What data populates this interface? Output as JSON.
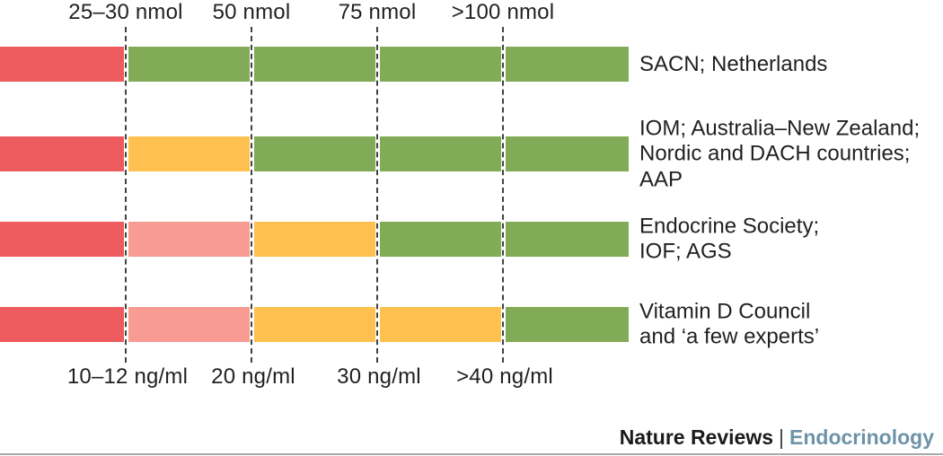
{
  "chart_data": {
    "type": "bar",
    "subtype": "horizontal-stacked-threshold-ranges",
    "description_of_axes": "Two linked concentration axes for serum vitamin D: top axis in nmol, bottom axis in ng/ml, marking the same four threshold lines",
    "top_axis": {
      "unit": "nmol",
      "tick_labels": [
        "25–30 nmol",
        "50 nmol",
        "75 nmol",
        ">100 nmol"
      ]
    },
    "bottom_axis": {
      "unit": "ng/ml",
      "tick_labels": [
        "10–12 ng/ml",
        "20 ng/ml",
        "30 ng/ml",
        ">40 ng/ml"
      ]
    },
    "segment_count_per_row": 5,
    "colors": {
      "red": "#ee5b5e",
      "pink": "#f79b93",
      "orange": "#fec14f",
      "green": "#81ab56"
    },
    "rows": [
      {
        "label_lines": [
          "SACN; Netherlands"
        ],
        "segments": [
          "red",
          "green",
          "green",
          "green",
          "green"
        ]
      },
      {
        "label_lines": [
          "IOM; Australia–New Zealand;",
          "Nordic and DACH countries;",
          "AAP"
        ],
        "segments": [
          "red",
          "orange",
          "green",
          "green",
          "green"
        ]
      },
      {
        "label_lines": [
          "Endocrine Society;",
          "IOF; AGS"
        ],
        "segments": [
          "red",
          "pink",
          "orange",
          "green",
          "green"
        ]
      },
      {
        "label_lines": [
          "Vitamin D Council",
          "and ‘a few experts’"
        ],
        "segments": [
          "red",
          "pink",
          "orange",
          "orange",
          "green"
        ]
      }
    ],
    "legend_position": "none",
    "grid": "dashed vertical threshold lines only"
  },
  "footer": {
    "journal": "Nature Reviews",
    "separator": "|",
    "subtitle": "Endocrinology"
  }
}
